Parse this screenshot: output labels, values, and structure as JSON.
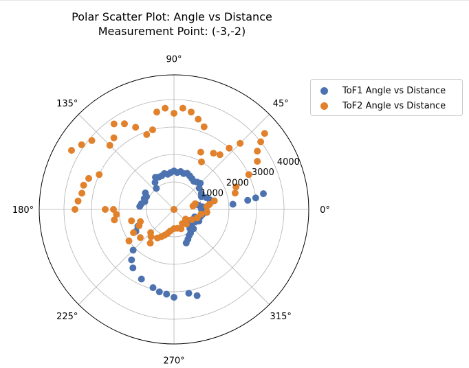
{
  "chart_data": {
    "type": "scatter",
    "subtype": "polar",
    "title": "Polar Scatter Plot: Angle vs Distance",
    "subtitle": "Measurement Point: (-3,-2)",
    "angle_ticks": [
      0,
      45,
      90,
      135,
      180,
      225,
      270,
      315
    ],
    "angle_tick_labels": [
      "0°",
      "45°",
      "90°",
      "135°",
      "180°",
      "225°",
      "270°",
      "315°"
    ],
    "radial_ticks": [
      1000,
      2000,
      3000,
      4000
    ],
    "radial_tick_labels": [
      "1000",
      "2000",
      "3000",
      "4000"
    ],
    "rlim": [
      0,
      4900
    ],
    "grid": true,
    "legend_placement": "outside-top-right",
    "series": [
      {
        "name": "ToF1 Angle vs Distance",
        "color": "#4c72b0",
        "points": [
          [
            0,
            0
          ],
          [
            0,
            1000
          ],
          [
            5,
            1050
          ],
          [
            10,
            900
          ],
          [
            12,
            1400
          ],
          [
            15,
            1350
          ],
          [
            20,
            1250
          ],
          [
            25,
            1100
          ],
          [
            30,
            1150
          ],
          [
            40,
            1200
          ],
          [
            45,
            1350
          ],
          [
            50,
            1300
          ],
          [
            55,
            1250
          ],
          [
            60,
            1300
          ],
          [
            65,
            1350
          ],
          [
            70,
            1400
          ],
          [
            75,
            1350
          ],
          [
            80,
            1400
          ],
          [
            85,
            1350
          ],
          [
            90,
            1400
          ],
          [
            95,
            1350
          ],
          [
            100,
            1300
          ],
          [
            105,
            1350
          ],
          [
            110,
            1300
          ],
          [
            115,
            1300
          ],
          [
            120,
            1350
          ],
          [
            125,
            1200
          ],
          [
            130,
            1000
          ],
          [
            150,
            1200
          ],
          [
            155,
            1100
          ],
          [
            160,
            1150
          ],
          [
            165,
            1100
          ],
          [
            170,
            1200
          ],
          [
            175,
            1250
          ],
          [
            205,
            1450
          ],
          [
            210,
            1600
          ],
          [
            225,
            2100
          ],
          [
            230,
            2400
          ],
          [
            235,
            2600
          ],
          [
            245,
            2800
          ],
          [
            255,
            2950
          ],
          [
            260,
            3050
          ],
          [
            265,
            3100
          ],
          [
            270,
            3200
          ],
          [
            280,
            3100
          ],
          [
            285,
            3250
          ],
          [
            290,
            1300
          ],
          [
            295,
            1200
          ],
          [
            300,
            1100
          ],
          [
            305,
            1050
          ],
          [
            310,
            900
          ],
          [
            315,
            1000
          ],
          [
            320,
            850
          ],
          [
            325,
            700
          ],
          [
            330,
            900
          ],
          [
            335,
            1000
          ],
          [
            340,
            800
          ],
          [
            345,
            1000
          ],
          [
            350,
            1050
          ],
          [
            355,
            1200
          ],
          [
            5,
            2150
          ],
          [
            7,
            2700
          ],
          [
            8,
            3000
          ],
          [
            10,
            3300
          ]
        ]
      },
      {
        "name": "ToF2 Angle vs Distance",
        "color": "#e1812c",
        "points": [
          [
            0,
            0
          ],
          [
            10,
            700
          ],
          [
            15,
            800
          ],
          [
            5,
            1200
          ],
          [
            8,
            1300
          ],
          [
            12,
            1500
          ],
          [
            15,
            2300
          ],
          [
            20,
            2400
          ],
          [
            25,
            3000
          ],
          [
            30,
            3500
          ],
          [
            35,
            3700
          ],
          [
            38,
            4000
          ],
          [
            40,
            4300
          ],
          [
            45,
            3400
          ],
          [
            48,
            3000
          ],
          [
            50,
            2600
          ],
          [
            55,
            2500
          ],
          [
            60,
            2000
          ],
          [
            65,
            2300
          ],
          [
            70,
            3200
          ],
          [
            75,
            3400
          ],
          [
            80,
            3600
          ],
          [
            85,
            3700
          ],
          [
            90,
            3500
          ],
          [
            95,
            3700
          ],
          [
            100,
            3600
          ],
          [
            105,
            3000
          ],
          [
            110,
            2900
          ],
          [
            115,
            3300
          ],
          [
            120,
            3600
          ],
          [
            125,
            3800
          ],
          [
            130,
            3400
          ],
          [
            135,
            3300
          ],
          [
            140,
            3900
          ],
          [
            145,
            4100
          ],
          [
            150,
            4300
          ],
          [
            155,
            3000
          ],
          [
            160,
            3300
          ],
          [
            165,
            3400
          ],
          [
            170,
            3400
          ],
          [
            175,
            3500
          ],
          [
            180,
            3600
          ],
          [
            180,
            2500
          ],
          [
            180,
            2200
          ],
          [
            185,
            2100
          ],
          [
            190,
            2200
          ],
          [
            195,
            1600
          ],
          [
            200,
            1300
          ],
          [
            205,
            1400
          ],
          [
            210,
            1700
          ],
          [
            215,
            2000
          ],
          [
            220,
            1600
          ],
          [
            225,
            1200
          ],
          [
            230,
            1300
          ],
          [
            235,
            1500
          ],
          [
            240,
            1200
          ],
          [
            245,
            1100
          ],
          [
            250,
            1000
          ],
          [
            255,
            900
          ],
          [
            260,
            800
          ],
          [
            270,
            700
          ],
          [
            280,
            700
          ],
          [
            290,
            750
          ],
          [
            300,
            600
          ],
          [
            310,
            700
          ],
          [
            320,
            550
          ],
          [
            330,
            750
          ],
          [
            340,
            900
          ],
          [
            350,
            1000
          ],
          [
            355,
            1200
          ]
        ]
      }
    ]
  }
}
